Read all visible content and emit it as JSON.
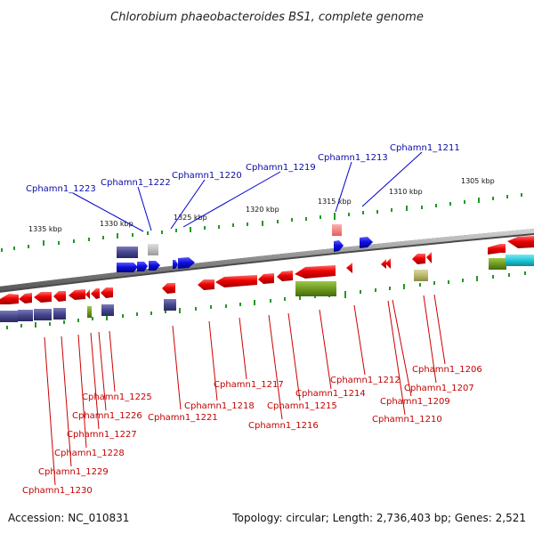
{
  "title": "Chlorobium phaeobacteroides BS1, complete genome",
  "accession": "Accession: NC_010831",
  "topology": "Topology: circular; Length: 2,736,403 bp; Genes: 2,521",
  "scale_labels": [
    "1335 kbp",
    "1330 kbp",
    "1325 kbp",
    "1320 kbp",
    "1315 kbp",
    "1310 kbp",
    "1305 kbp"
  ],
  "top_labels": [
    "Cphamn1_1223",
    "Cphamn1_1222",
    "Cphamn1_1220",
    "Cphamn1_1219",
    "Cphamn1_1213",
    "Cphamn1_1211"
  ],
  "bottom_labels": [
    "Cphamn1_1206",
    "Cphamn1_1207",
    "Cphamn1_1209",
    "Cphamn1_1210",
    "Cphamn1_1212",
    "Cphamn1_1214",
    "Cphamn1_1215",
    "Cphamn1_1216",
    "Cphamn1_1217",
    "Cphamn1_1218",
    "Cphamn1_1221",
    "Cphamn1_1225",
    "Cphamn1_1226",
    "Cphamn1_1227",
    "Cphamn1_1228",
    "Cphamn1_1229",
    "Cphamn1_1230"
  ],
  "colors": {
    "forward_gene": "#1010e0",
    "reverse_gene": "#e00000",
    "backbone": "#8a8a8a",
    "scale_ticks": "#229922",
    "cog_purple": "#46468e",
    "cog_olive": "#6e9a20",
    "cog_cyan": "#20c8d8",
    "cog_khaki": "#b8b870"
  }
}
